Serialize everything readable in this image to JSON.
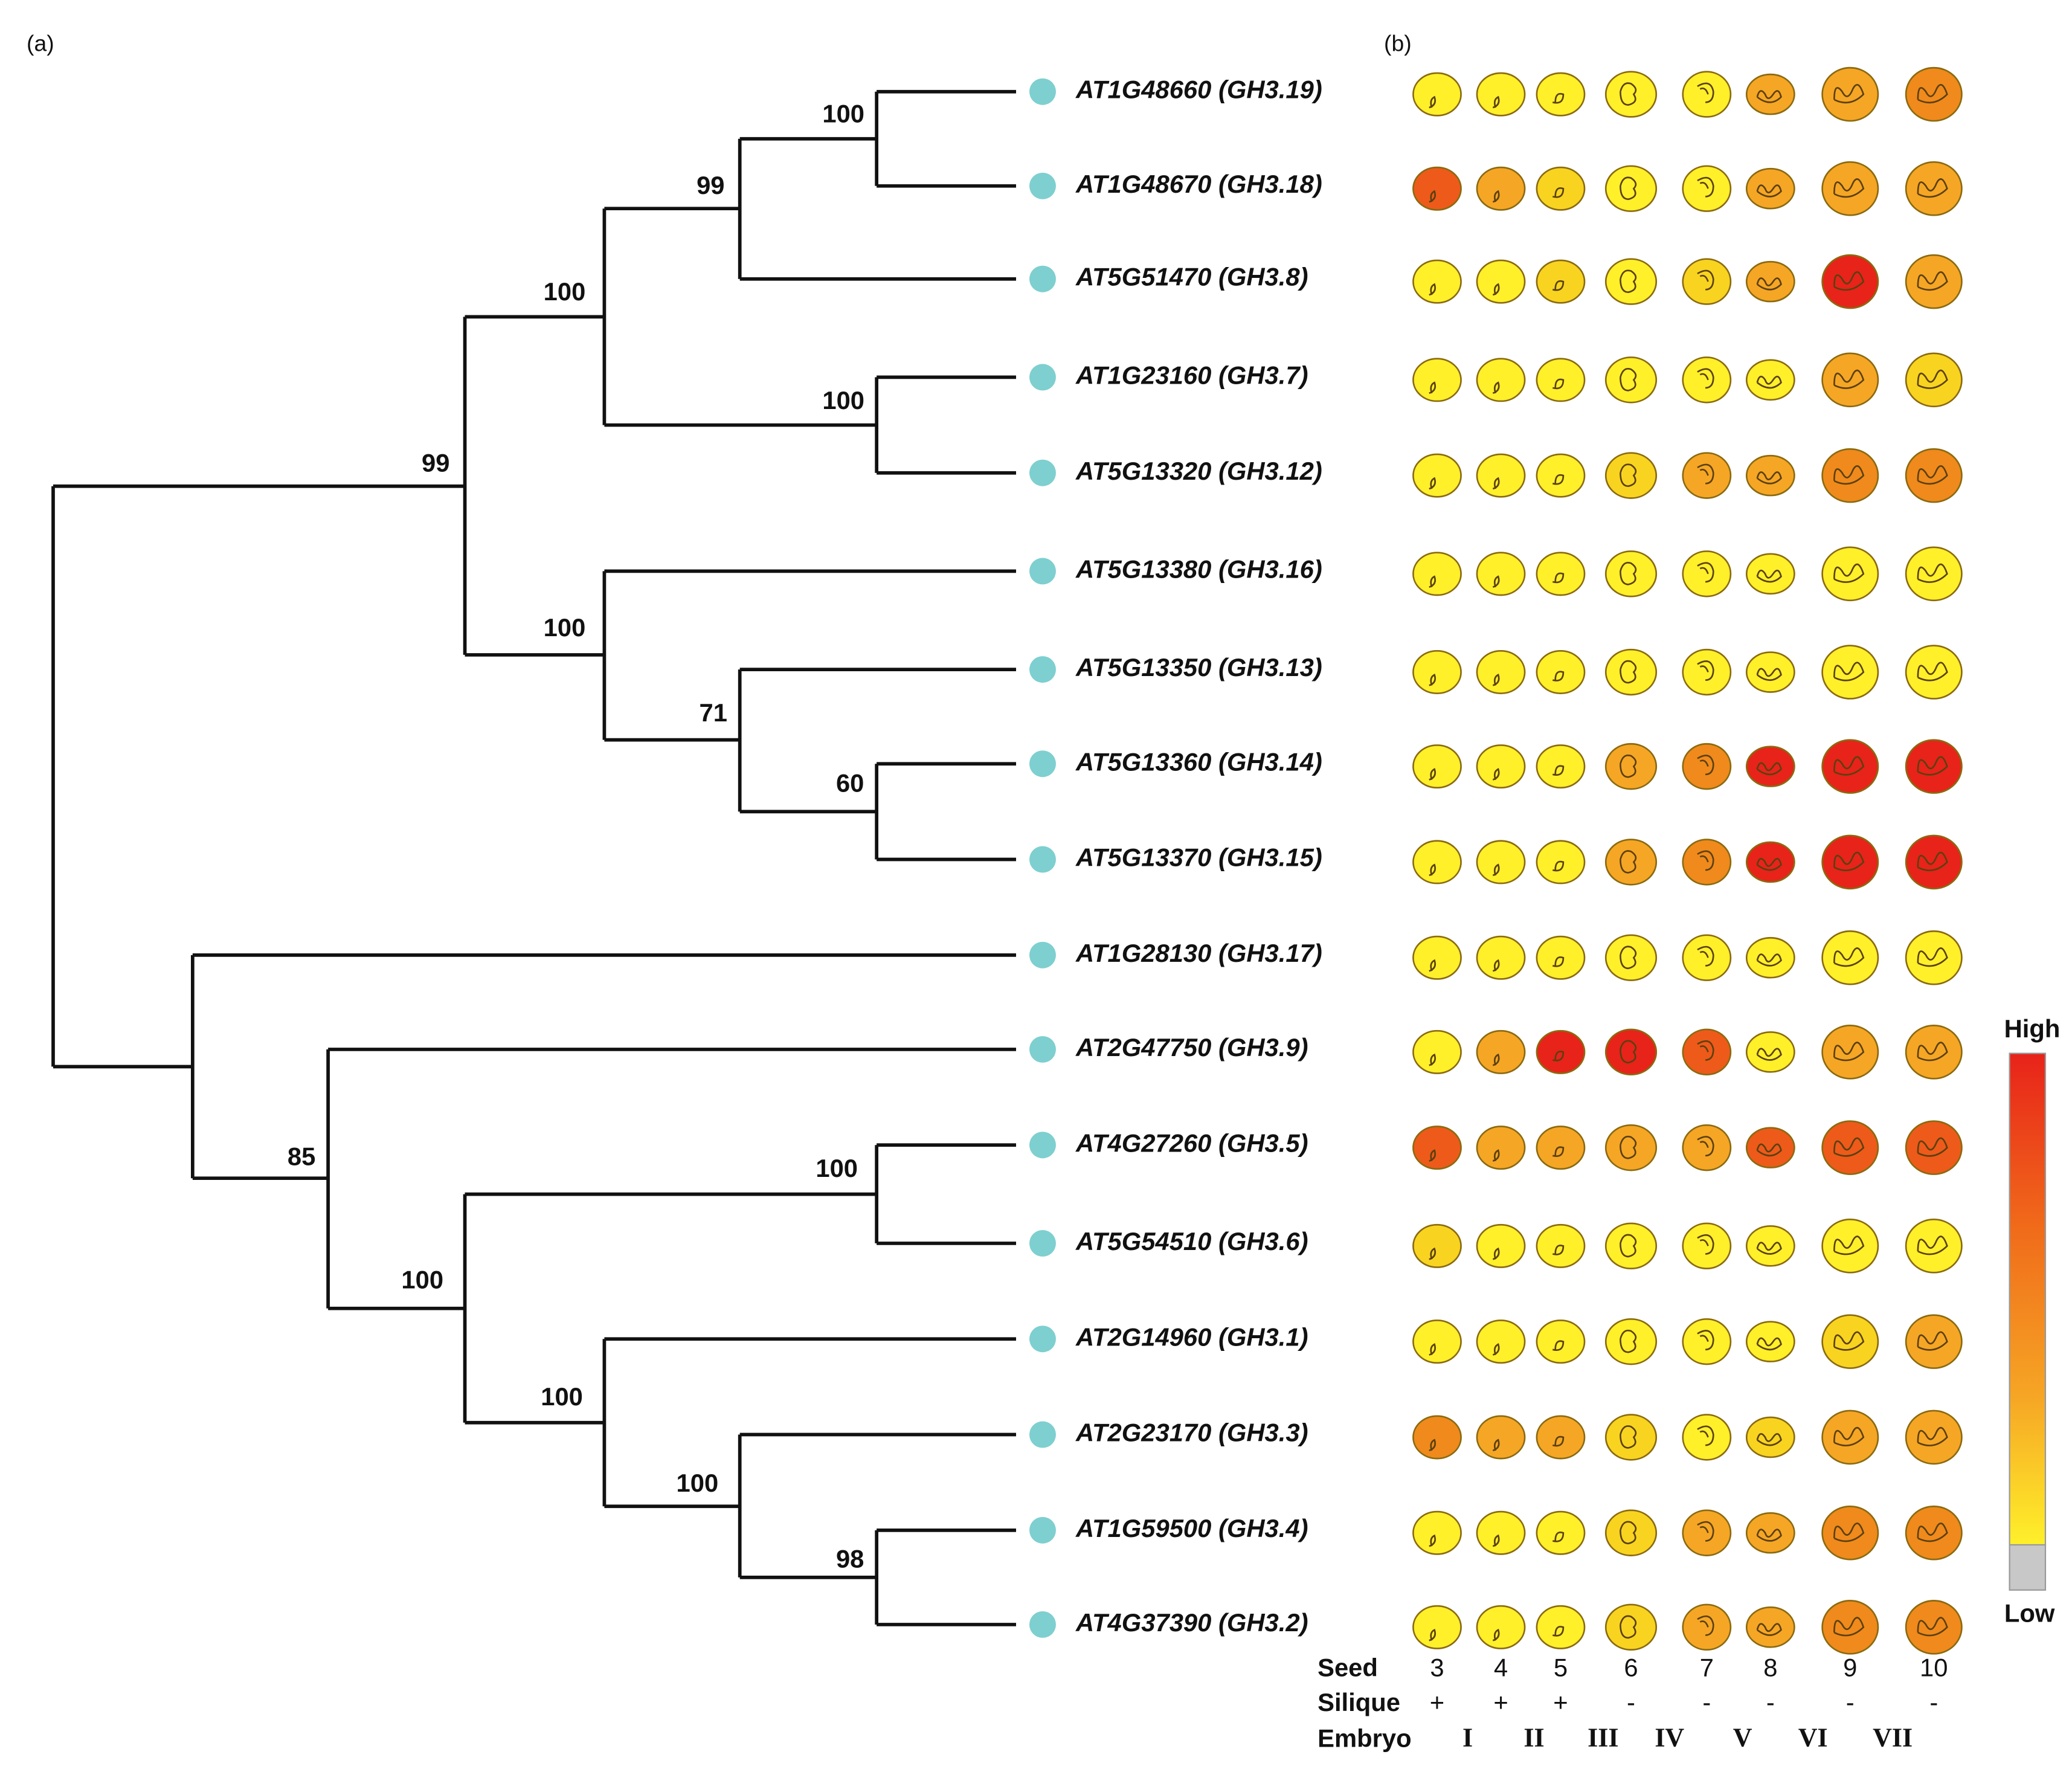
{
  "panels": [
    "(a)",
    "(b)"
  ],
  "tree": {
    "leaves": [
      "AT1G48660 (GH3.19)",
      "AT1G48670 (GH3.18)",
      "AT5G51470 (GH3.8)",
      "AT1G23160 (GH3.7)",
      "AT5G13320 (GH3.12)",
      "AT5G13380 (GH3.16)",
      "AT5G13350 (GH3.13)",
      "AT5G13360 (GH3.14)",
      "AT5G13370 (GH3.15)",
      "AT1G28130 (GH3.17)",
      "AT2G47750 (GH3.9)",
      "AT4G27260 (GH3.5)",
      "AT5G54510 (GH3.6)",
      "AT2G14960 (GH3.1)",
      "AT2G23170 (GH3.3)",
      "AT1G59500 (GH3.4)",
      "AT4G37390 (GH3.2)"
    ],
    "supports": [
      100,
      99,
      100,
      100,
      60,
      71,
      100,
      99,
      100,
      98,
      100,
      100,
      100,
      85
    ],
    "leaf_color": "#7ecfd0"
  },
  "heatmap": {
    "row_labels": [
      "Seed",
      "Silique",
      "Embryo"
    ],
    "seed": [
      3,
      4,
      5,
      6,
      7,
      8,
      9,
      10
    ],
    "silique": [
      "+",
      "+",
      "+",
      "-",
      "-",
      "-",
      "-",
      "-"
    ],
    "embryo": [
      "I",
      "II",
      "III",
      "IV",
      "V",
      "VI",
      "VII"
    ],
    "palette": {
      "Y": "#fff02a",
      "L": "#f8d420",
      "O": "#f6a625",
      "D": "#f08a1c",
      "E": "#ee5a1a",
      "R": "#e8231a"
    },
    "colors": [
      "YYYYYOOD",
      "EOLYYOOO",
      "YYLYLORO",
      "YYYYYYOL",
      "YYYLOODD",
      "YYYYYYYY",
      "YYYYYYYY",
      "YYYODRRR",
      "YYYODRRR",
      "YYYYYYYY",
      "YORREYOO",
      "EOOOOEEE",
      "LYYYYYYY",
      "YYYYYYLO",
      "DOOLYLOO",
      "YYYLOODD",
      "YYYLOODD"
    ],
    "legend": {
      "high": "High",
      "low": "Low",
      "low_color": "#c8c8c8"
    }
  }
}
